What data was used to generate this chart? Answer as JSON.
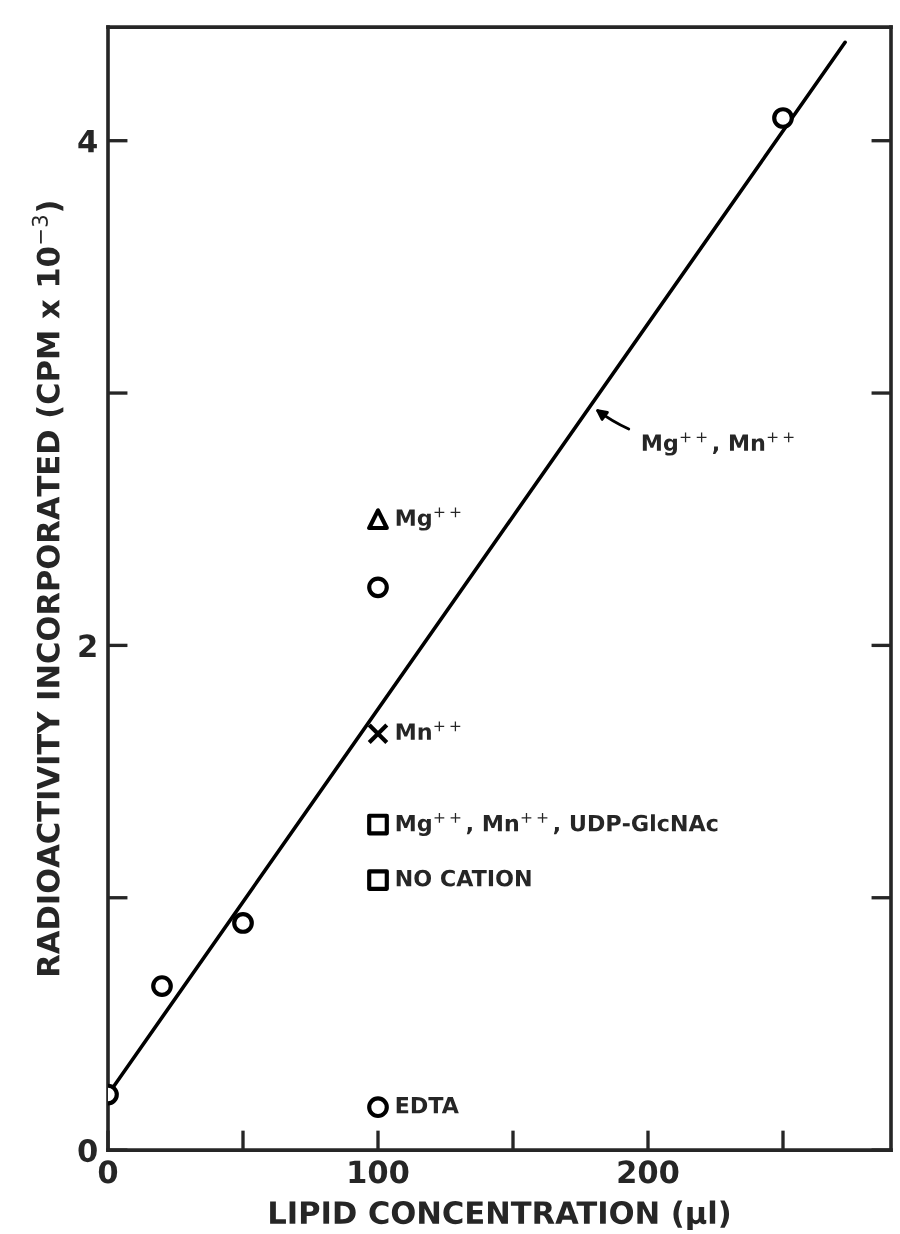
{
  "chart_data": {
    "type": "scatter",
    "xlabel": "LIPID CONCENTRATION (µl)",
    "ylabel": "RADIOACTIVITY INCORPORATED (CPM x 10$^{−3}$)",
    "xlim": [
      0,
      290
    ],
    "ylim": [
      0,
      4.45
    ],
    "xticks": [
      0,
      {
        "value": 50,
        "label": null
      },
      100,
      {
        "value": 150,
        "label": null
      },
      200,
      {
        "value": 250,
        "label": null
      }
    ],
    "yticks": [
      0,
      {
        "value": 1,
        "label": null
      },
      2,
      {
        "value": 3,
        "label": null
      },
      4
    ],
    "grid": false,
    "legend": false,
    "series": [
      {
        "type": "line",
        "name": "Mg$^{++}$, Mn$^{++}$",
        "color": "#000000",
        "x": [
          0,
          273
        ],
        "values": [
          0.22,
          4.39
        ],
        "marker": "none",
        "line_style": "solid"
      },
      {
        "color": "#000000",
        "x": [
          0,
          20,
          50,
          100,
          250
        ],
        "values": [
          0.22,
          0.65,
          0.9,
          2.23,
          4.09
        ],
        "marker": "circle"
      },
      {
        "name": "Mg$^{++}$",
        "color": "#000000",
        "x": [
          100
        ],
        "values": [
          2.5
        ],
        "marker": "triangle"
      },
      {
        "name": "Mn$^{++}$",
        "color": "#000000",
        "x": [
          100
        ],
        "values": [
          1.65
        ],
        "marker": "cross"
      },
      {
        "name": "Mg$^{++}$, Mn$^{++}$, UDP-GlcNAc",
        "color": "#000000",
        "x": [
          100
        ],
        "values": [
          1.29
        ],
        "marker": "square"
      },
      {
        "name": "NO CATION",
        "color": "#000000",
        "x": [
          100
        ],
        "values": [
          1.07
        ],
        "marker": "square"
      },
      {
        "name": "EDTA",
        "color": "#000000",
        "x": [
          100
        ],
        "values": [
          0.17
        ],
        "marker": "circle"
      }
    ]
  }
}
